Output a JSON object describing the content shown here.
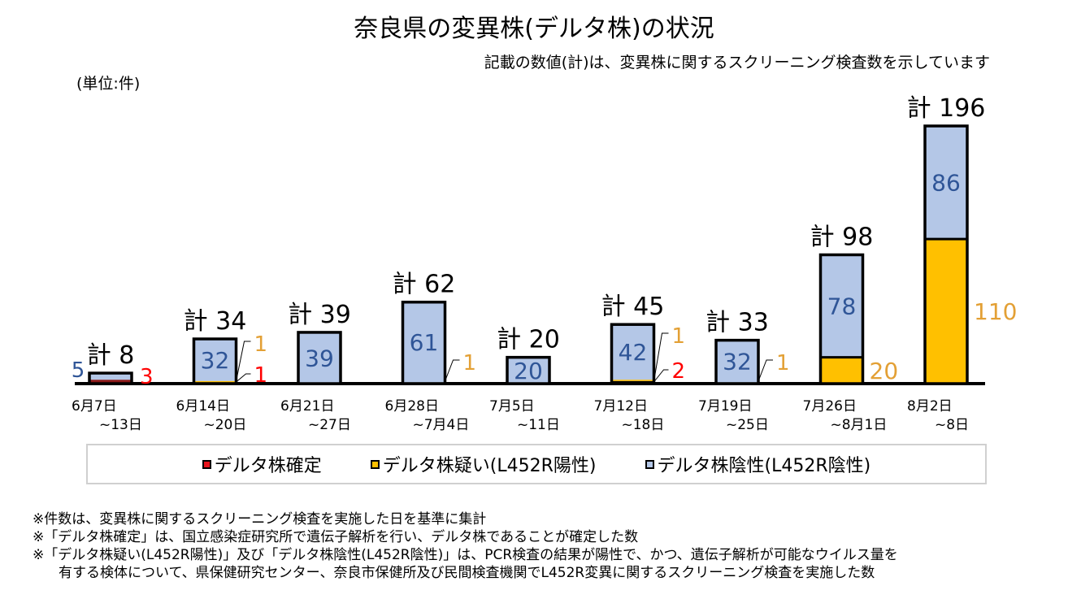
{
  "header": {
    "title": "奈良県の変異株(デルタ株)の状況",
    "subtitle": "記載の数値(計)は、変異株に関するスクリーニング検査数を示しています",
    "unit": "(単位:件)"
  },
  "colors": {
    "confirmed": "#e8141c",
    "suspected": "#ffc000",
    "negative": "#b4c7e7",
    "negative_label": "#2f5597",
    "suspected_label": "#e3a035",
    "confirmed_label": "#ff0000"
  },
  "chart_data": {
    "type": "bar",
    "stacked": true,
    "title": "奈良県の変異株(デルタ株)の状況",
    "ylabel": "(単位:件)",
    "total_prefix": "計",
    "categories": [
      {
        "line1": "6月7日",
        "line2": "~13日"
      },
      {
        "line1": "6月14日",
        "line2": "~20日"
      },
      {
        "line1": "6月21日",
        "line2": "~27日"
      },
      {
        "line1": "6月28日",
        "line2": "~7月4日"
      },
      {
        "line1": "7月5日",
        "line2": "~11日"
      },
      {
        "line1": "7月12日",
        "line2": "~18日"
      },
      {
        "line1": "7月19日",
        "line2": "~25日"
      },
      {
        "line1": "7月26日",
        "line2": "~8月1日"
      },
      {
        "line1": "8月2日",
        "line2": "~8日"
      }
    ],
    "series": [
      {
        "name": "デルタ株確定",
        "key": "confirmed",
        "values": [
          3,
          1,
          0,
          0,
          0,
          2,
          0,
          0,
          0
        ]
      },
      {
        "name": "デルタ株疑い(L452R陽性)",
        "key": "suspected",
        "values": [
          0,
          1,
          0,
          1,
          0,
          1,
          1,
          20,
          110
        ]
      },
      {
        "name": "デルタ株陰性(L452R陰性)",
        "key": "negative",
        "values": [
          5,
          32,
          39,
          61,
          20,
          42,
          32,
          78,
          86
        ]
      }
    ],
    "totals": [
      8,
      34,
      39,
      62,
      20,
      45,
      33,
      98,
      196
    ],
    "ylim": [
      0,
      196
    ],
    "grid": false,
    "legend_position": "bottom"
  },
  "legend": [
    {
      "label": "デルタ株確定",
      "key": "confirmed"
    },
    {
      "label": "デルタ株疑い(L452R陽性)",
      "key": "suspected"
    },
    {
      "label": "デルタ株陰性(L452R陰性)",
      "key": "negative"
    }
  ],
  "notes": [
    "※件数は、変異株に関するスクリーニング検査を実施した日を基準に集計",
    "※「デルタ株確定」は、国立感染症研究所で遺伝子解析を行い、デルタ株であることが確定した数",
    "※「デルタ株疑い(L452R陽性)」及び「デルタ株陰性(L452R陰性)」は、PCR検査の結果が陽性で、かつ、遺伝子解析が可能なウイルス量を",
    "有する検体について、県保健研究センター、奈良市保健所及び民間検査機関でL452R変異に関するスクリーニング検査を実施した数"
  ]
}
